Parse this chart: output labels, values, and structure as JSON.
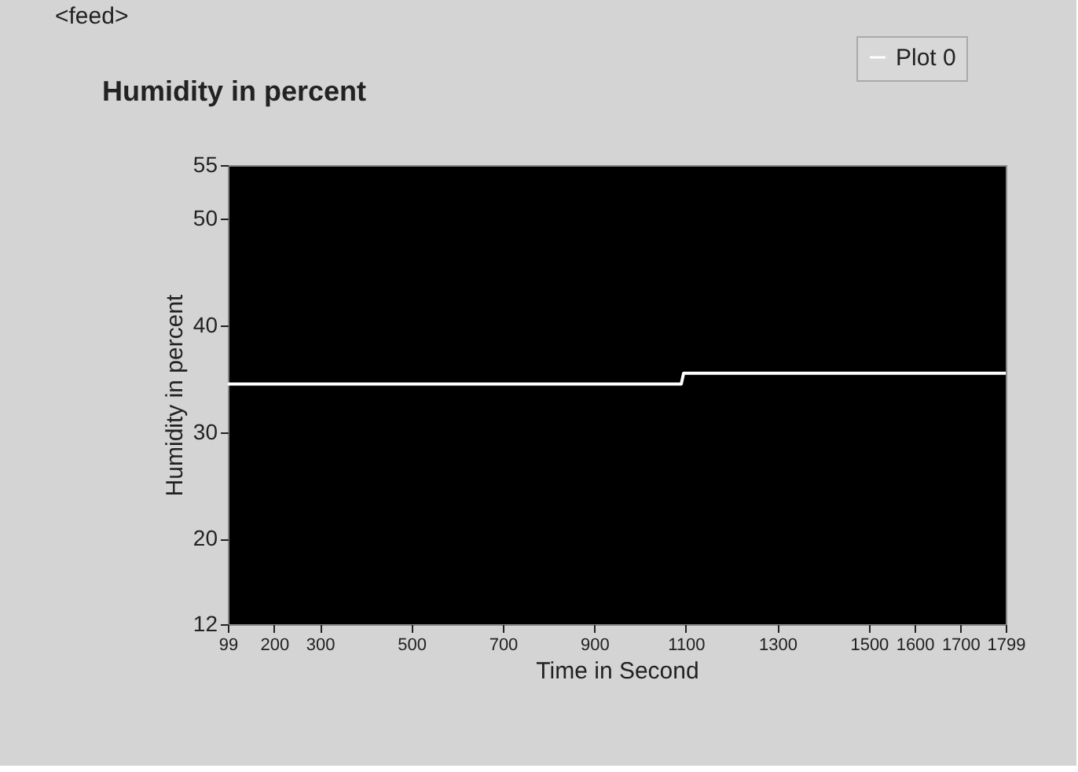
{
  "chart_data": {
    "type": "line",
    "title": "Humidity in percent",
    "xlabel": "Time in Second",
    "ylabel": "Humidity in percent",
    "annotations": [
      "<feed>"
    ],
    "x": [
      99,
      1090,
      1095,
      1799
    ],
    "series": [
      {
        "name": "Plot 0",
        "color": "#ffffff",
        "values": [
          34.5,
          34.5,
          35.5,
          35.5
        ]
      }
    ],
    "xlim": [
      99,
      1799
    ],
    "xticks": [
      99,
      200,
      300,
      500,
      700,
      900,
      1100,
      1300,
      1500,
      1600,
      1700,
      1799
    ],
    "ylim": [
      12,
      55
    ],
    "yticks": [
      12,
      20,
      30,
      40,
      50,
      55
    ],
    "grid": false,
    "legend": "top right",
    "marker": "none",
    "line_style": "solid"
  }
}
